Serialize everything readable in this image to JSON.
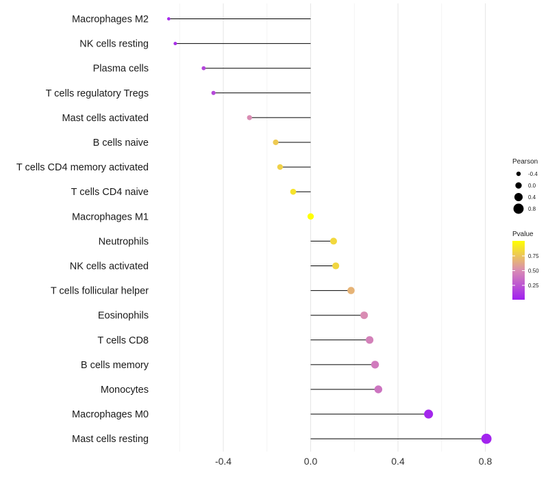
{
  "chart_data": {
    "type": "lollipop",
    "categories": [
      "Macrophages M2",
      "NK cells resting",
      "Plasma cells",
      "T cells regulatory  Tregs ",
      "Mast cells activated",
      "B cells naive",
      "T cells CD4 memory activated",
      "T cells CD4 naive",
      "Macrophages M1",
      "Neutrophils",
      "NK cells activated",
      "T cells follicular helper",
      "Eosinophils",
      "T cells CD8",
      "B cells memory",
      "Monocytes",
      "Macrophages M0",
      "Mast cells resting"
    ],
    "pearson": [
      -0.65,
      -0.62,
      -0.49,
      -0.445,
      -0.28,
      -0.16,
      -0.14,
      -0.08,
      0.0,
      0.105,
      0.115,
      0.185,
      0.245,
      0.27,
      0.295,
      0.31,
      0.54,
      0.805
    ],
    "pvalue": [
      0.04,
      0.07,
      0.17,
      0.19,
      0.5,
      0.77,
      0.8,
      0.88,
      1.0,
      0.83,
      0.82,
      0.67,
      0.5,
      0.45,
      0.42,
      0.39,
      0.03,
      0.02
    ],
    "xlim": [
      -0.6,
      0.8
    ],
    "x_ticks": [
      -0.4,
      0.0,
      0.4,
      0.8
    ],
    "x_tick_labels": [
      "-0.4",
      "0.0",
      "0.4",
      "0.8"
    ],
    "title": "",
    "xlabel": "",
    "ylabel": "",
    "grid": true,
    "legend_size": {
      "title": "Pearson",
      "values": [
        -0.4,
        0.0,
        0.4,
        0.8
      ],
      "labels": [
        "-0.4",
        "0.0",
        "0.4",
        "0.8"
      ]
    },
    "legend_color": {
      "title": "Pvalue",
      "ticks": [
        0.75,
        0.5,
        0.25
      ],
      "tick_labels": [
        "0.75",
        "0.50",
        "0.25"
      ],
      "low_color": "#a020f0",
      "mid_color": "#d98cb3",
      "high_color": "#ffff00"
    },
    "legend_position": "right"
  }
}
